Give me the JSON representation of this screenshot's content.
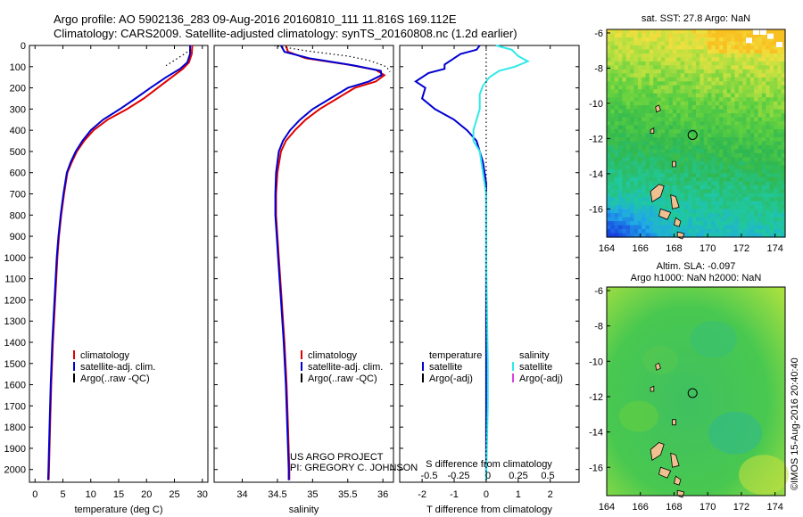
{
  "header": {
    "line1": "Argo profile: AO 5902136_283 09-Aug-2016 20160810_111 11.816S 169.112E",
    "line2": "Climatology: CARS2009. Satellite-adjusted climatology: synTS_20160808.nc (1.2d earlier)"
  },
  "credits": {
    "project": "US ARGO PROJECT",
    "pi": "PI: GREGORY C. JOHNSON",
    "imos": "©IMOS 15-Aug-2016 20:40:40"
  },
  "colors": {
    "climatology": "#e00000",
    "satellite": "#0000d0",
    "argo": "#000000",
    "sal_satellite": "#30e8e8",
    "sal_argo": "#e040e0"
  },
  "chart_data": [
    {
      "type": "line",
      "name": "temperature-profile",
      "xlabel": "temperature (deg C)",
      "xlim": [
        -1,
        31
      ],
      "ylim": [
        2060,
        0
      ],
      "xticks": [
        0,
        5,
        10,
        15,
        20,
        25,
        30
      ],
      "yticks": [
        0,
        100,
        200,
        300,
        400,
        500,
        600,
        700,
        800,
        900,
        1000,
        1100,
        1200,
        1300,
        1400,
        1500,
        1600,
        1700,
        1800,
        1900,
        2000
      ],
      "legend": [
        "climatology",
        "satellite-adj. clim.",
        "Argo(..raw -QC)"
      ],
      "series": [
        {
          "name": "climatology",
          "color": "#e00000",
          "points": [
            [
              28.2,
              0
            ],
            [
              28.1,
              40
            ],
            [
              27.6,
              80
            ],
            [
              26.5,
              110
            ],
            [
              24.5,
              150
            ],
            [
              22,
              200
            ],
            [
              19.5,
              250
            ],
            [
              16.5,
              300
            ],
            [
              13,
              350
            ],
            [
              10.5,
              400
            ],
            [
              8.8,
              450
            ],
            [
              7.5,
              500
            ],
            [
              6.6,
              550
            ],
            [
              5.8,
              600
            ],
            [
              5.2,
              700
            ],
            [
              4.7,
              800
            ],
            [
              4.3,
              900
            ],
            [
              4.0,
              1000
            ],
            [
              3.6,
              1200
            ],
            [
              3.2,
              1400
            ],
            [
              2.9,
              1600
            ],
            [
              2.7,
              1800
            ],
            [
              2.5,
              2000
            ],
            [
              2.45,
              2050
            ]
          ]
        },
        {
          "name": "satellite-adj. clim.",
          "color": "#0000d0",
          "points": [
            [
              27.8,
              0
            ],
            [
              27.8,
              40
            ],
            [
              27.3,
              80
            ],
            [
              26,
              110
            ],
            [
              23.5,
              150
            ],
            [
              20.7,
              200
            ],
            [
              18,
              250
            ],
            [
              15.2,
              300
            ],
            [
              12.2,
              350
            ],
            [
              10,
              400
            ],
            [
              8.5,
              450
            ],
            [
              7.3,
              500
            ],
            [
              6.4,
              550
            ],
            [
              5.7,
              600
            ],
            [
              5.1,
              700
            ],
            [
              4.6,
              800
            ],
            [
              4.2,
              900
            ],
            [
              3.9,
              1000
            ],
            [
              3.5,
              1200
            ],
            [
              3.1,
              1400
            ],
            [
              2.8,
              1600
            ],
            [
              2.6,
              1800
            ],
            [
              2.4,
              2000
            ],
            [
              2.35,
              2050
            ]
          ]
        },
        {
          "name": "argo-dotted",
          "color": "#000000",
          "dotted": true,
          "points": [
            [
              27.9,
              20
            ],
            [
              26.5,
              45
            ],
            [
              25,
              70
            ],
            [
              23.5,
              95
            ]
          ]
        }
      ]
    },
    {
      "type": "line",
      "name": "salinity-profile",
      "xlabel": "salinity",
      "xlim": [
        33.6,
        36.15
      ],
      "ylim": [
        2060,
        0
      ],
      "xticks": [
        34,
        34.5,
        35,
        35.5,
        36
      ],
      "legend": [
        "climatology",
        "satellite-adj. clim.",
        "Argo(..raw -QC)"
      ],
      "series": [
        {
          "name": "climatology",
          "color": "#e00000",
          "points": [
            [
              34.62,
              0
            ],
            [
              34.65,
              30
            ],
            [
              34.9,
              60
            ],
            [
              35.5,
              90
            ],
            [
              35.9,
              115
            ],
            [
              36.02,
              140
            ],
            [
              35.9,
              170
            ],
            [
              35.6,
              200
            ],
            [
              35.35,
              250
            ],
            [
              35.1,
              300
            ],
            [
              34.9,
              350
            ],
            [
              34.75,
              400
            ],
            [
              34.62,
              450
            ],
            [
              34.55,
              500
            ],
            [
              34.5,
              600
            ],
            [
              34.48,
              700
            ],
            [
              34.48,
              800
            ],
            [
              34.5,
              900
            ],
            [
              34.52,
              1000
            ],
            [
              34.56,
              1200
            ],
            [
              34.6,
              1400
            ],
            [
              34.63,
              1600
            ],
            [
              34.65,
              1800
            ],
            [
              34.67,
              2000
            ],
            [
              34.67,
              2050
            ]
          ]
        },
        {
          "name": "satellite-adj. clim.",
          "color": "#0000d0",
          "points": [
            [
              34.55,
              0
            ],
            [
              34.6,
              30
            ],
            [
              34.95,
              60
            ],
            [
              35.6,
              95
            ],
            [
              35.97,
              120
            ],
            [
              35.98,
              140
            ],
            [
              35.8,
              170
            ],
            [
              35.5,
              200
            ],
            [
              35.25,
              250
            ],
            [
              35.0,
              300
            ],
            [
              34.82,
              350
            ],
            [
              34.68,
              400
            ],
            [
              34.58,
              450
            ],
            [
              34.52,
              500
            ],
            [
              34.48,
              600
            ],
            [
              34.47,
              700
            ],
            [
              34.47,
              800
            ],
            [
              34.49,
              900
            ],
            [
              34.51,
              1000
            ],
            [
              34.55,
              1200
            ],
            [
              34.59,
              1400
            ],
            [
              34.62,
              1600
            ],
            [
              34.64,
              1800
            ],
            [
              34.66,
              2000
            ],
            [
              34.66,
              2050
            ]
          ]
        },
        {
          "name": "argo-dotted",
          "color": "#000000",
          "dotted": true,
          "points": [
            [
              34.45,
              0
            ],
            [
              34.9,
              25
            ],
            [
              35.5,
              50
            ],
            [
              35.8,
              70
            ],
            [
              36.05,
              100
            ],
            [
              36.1,
              125
            ]
          ]
        }
      ]
    },
    {
      "type": "line",
      "name": "difference-profile",
      "xlabel": "T difference from climatology",
      "xlabel2": "S difference from climatology",
      "xlim": [
        -2.7,
        2.9
      ],
      "ylim": [
        2060,
        0
      ],
      "xticks": [
        -2,
        -1,
        0,
        1,
        2
      ],
      "xticks2": [
        "-0.5",
        "-0.25",
        "0",
        "0.25",
        "0.5"
      ],
      "legend_temperature": [
        "temperature",
        "satellite",
        "Argo(-adj)"
      ],
      "legend_salinity": [
        "salinity",
        "satellite",
        "Argo(-adj)"
      ],
      "series": [
        {
          "name": "temperature satellite",
          "color": "#0000d0",
          "points": [
            [
              -0.2,
              0
            ],
            [
              -0.3,
              20
            ],
            [
              -0.8,
              40
            ],
            [
              -1.0,
              60
            ],
            [
              -1.3,
              90
            ],
            [
              -1.3,
              110
            ],
            [
              -1.8,
              130
            ],
            [
              -2.2,
              170
            ],
            [
              -1.9,
              200
            ],
            [
              -2.0,
              250
            ],
            [
              -1.6,
              300
            ],
            [
              -1.0,
              350
            ],
            [
              -0.6,
              400
            ],
            [
              -0.3,
              450
            ],
            [
              -0.1,
              550
            ],
            [
              0,
              650
            ],
            [
              0,
              800
            ],
            [
              0,
              2050
            ]
          ]
        },
        {
          "name": "salinity satellite",
          "color": "#30e8e8",
          "points": [
            [
              0.3,
              0
            ],
            [
              0.8,
              20
            ],
            [
              1.0,
              50
            ],
            [
              1.3,
              75
            ],
            [
              0.9,
              100
            ],
            [
              0.4,
              120
            ],
            [
              0.1,
              150
            ],
            [
              -0.1,
              190
            ],
            [
              -0.2,
              230
            ],
            [
              -0.2,
              300
            ],
            [
              -0.3,
              350
            ],
            [
              -0.4,
              400
            ],
            [
              -0.4,
              450
            ],
            [
              -0.2,
              500
            ],
            [
              -0.1,
              600
            ],
            [
              0,
              700
            ],
            [
              0,
              1000
            ],
            [
              0.05,
              1500
            ],
            [
              0.05,
              1700
            ],
            [
              0,
              2050
            ]
          ]
        },
        {
          "name": "zero-dotted",
          "color": "#000000",
          "dotted": true,
          "points": [
            [
              0,
              0
            ],
            [
              0,
              2050
            ]
          ]
        }
      ]
    },
    {
      "type": "heatmap",
      "name": "sst-map",
      "title": "sat. SST: 27.8 Argo: NaN",
      "xlim": [
        164,
        174.6
      ],
      "ylim": [
        -17.6,
        -5.8
      ],
      "xticks": [
        164,
        166,
        168,
        170,
        172,
        174
      ],
      "yticks": [
        -6,
        -8,
        -10,
        -12,
        -14,
        -16
      ],
      "marker": [
        169.1,
        -11.8
      ]
    },
    {
      "type": "heatmap",
      "name": "sla-map",
      "title": "Altim. SLA: -0.097",
      "subtitle": "Argo h1000: NaN h2000: NaN",
      "xlim": [
        164,
        174.6
      ],
      "ylim": [
        -17.6,
        -5.8
      ],
      "xticks": [
        164,
        166,
        168,
        170,
        172,
        174
      ],
      "yticks": [
        -6,
        -8,
        -10,
        -12,
        -14,
        -16
      ],
      "marker": [
        169.1,
        -11.8
      ]
    }
  ]
}
